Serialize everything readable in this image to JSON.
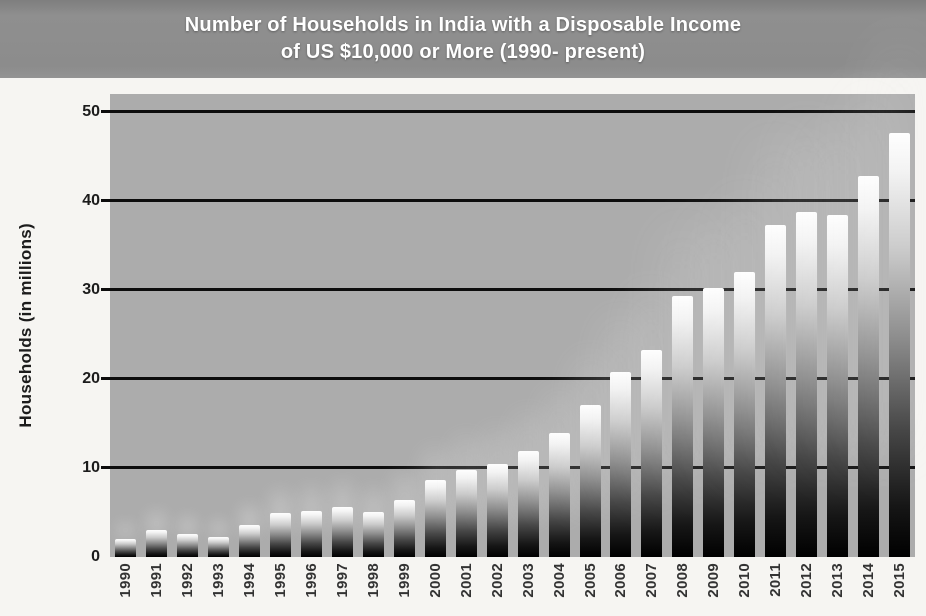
{
  "header": {
    "title_line1": "Number of Households in India with a Disposable Income",
    "title_line2": "of US $10,000 or More (1990- present)"
  },
  "chart_data": {
    "type": "bar",
    "title": "Number of Households in India with a Disposable Income of US $10,000 or More (1990- present)",
    "xlabel": "",
    "ylabel": "Households (in millions)",
    "categories": [
      "1990",
      "1991",
      "1992",
      "1993",
      "1994",
      "1995",
      "1996",
      "1997",
      "1998",
      "1999",
      "2000",
      "2001",
      "2002",
      "2003",
      "2004",
      "2005",
      "2006",
      "2007",
      "2008",
      "2009",
      "2010",
      "2011",
      "2012",
      "2013",
      "2014",
      "2015"
    ],
    "values": [
      2.0,
      3.0,
      2.6,
      2.2,
      3.6,
      4.9,
      5.2,
      5.6,
      5.1,
      6.4,
      8.7,
      9.8,
      10.4,
      11.9,
      13.9,
      17.1,
      20.8,
      23.3,
      29.3,
      30.2,
      32.0,
      37.3,
      38.8,
      38.4,
      42.8,
      47.6
    ],
    "yticks": [
      0,
      10,
      20,
      30,
      40,
      50
    ],
    "ylim": [
      0,
      52
    ],
    "grid": "horizontal-behind-bars",
    "legend": false,
    "colors": {
      "page_background": "#f6f5f2",
      "header_background": "#8c8c8c",
      "title_text": "#ffffff",
      "plot_background": "#acacac",
      "gridline": "#0d0d0d",
      "bar_gradient_top": "#fefefe",
      "bar_gradient_bottom": "#000000",
      "axis_text": "#1c1c1c"
    }
  }
}
